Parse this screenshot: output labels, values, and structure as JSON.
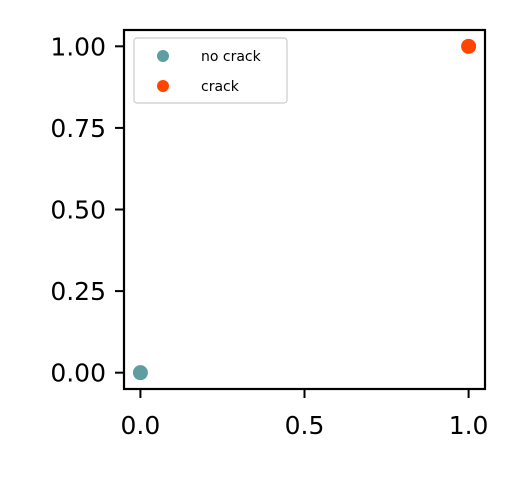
{
  "chart_data": {
    "type": "scatter",
    "title": "",
    "xlabel": "",
    "ylabel": "",
    "xlim": [
      -0.05,
      1.05
    ],
    "ylim": [
      -0.05,
      1.05
    ],
    "x_ticks": [
      0.0,
      0.5,
      1.0
    ],
    "x_tick_labels": [
      "0.0",
      "0.5",
      "1.0"
    ],
    "y_ticks": [
      0.0,
      0.25,
      0.5,
      0.75,
      1.0
    ],
    "y_tick_labels": [
      "0.00",
      "0.25",
      "0.50",
      "0.75",
      "1.00"
    ],
    "grid": false,
    "legend_position": "top-left",
    "series": [
      {
        "name": "no crack",
        "color": "#5f9ea0",
        "points": [
          {
            "x": 0.0,
            "y": 0.0
          }
        ]
      },
      {
        "name": "crack",
        "color": "#ff4500",
        "points": [
          {
            "x": 1.0,
            "y": 1.0
          }
        ]
      }
    ]
  }
}
